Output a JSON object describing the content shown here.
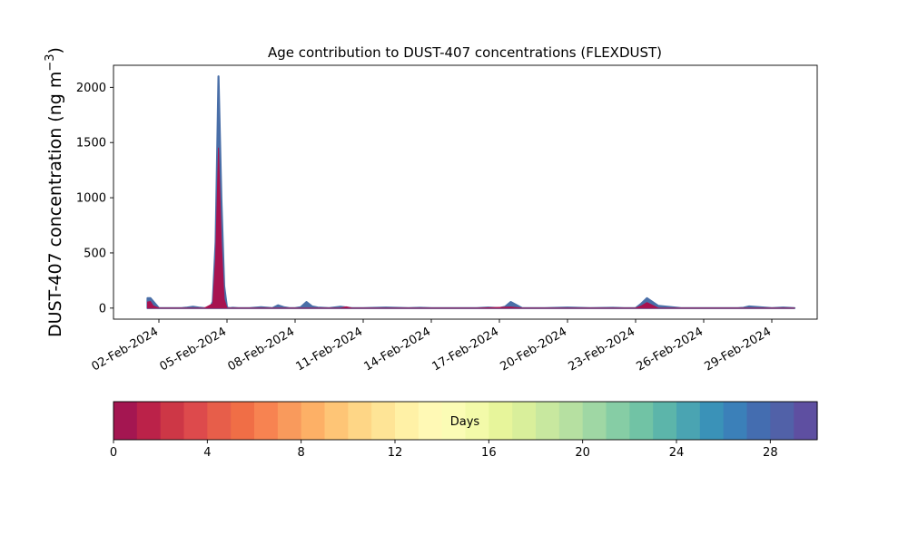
{
  "chart_data": {
    "type": "area",
    "title": "Age contribution to DUST-407 concentrations (FLEXDUST)",
    "ylabel_main": "DUST-407 concentration (ng m",
    "ylabel_exp": "−3",
    "ylabel_close": ")",
    "xlabel": "",
    "x_is_date": true,
    "xlim": [
      "2024-01-31",
      "2024-03-02"
    ],
    "ylim": [
      -100,
      2200
    ],
    "yticks": [
      0,
      500,
      1000,
      1500,
      2000
    ],
    "ytick_labels": [
      "0",
      "500",
      "1000",
      "1500",
      "2000"
    ],
    "xtick_dates": [
      "2024-02-02",
      "2024-02-05",
      "2024-02-08",
      "2024-02-11",
      "2024-02-14",
      "2024-02-17",
      "2024-02-20",
      "2024-02-23",
      "2024-02-26",
      "2024-02-29"
    ],
    "xtick_labels": [
      "02-Feb-2024",
      "05-Feb-2024",
      "08-Feb-2024",
      "11-Feb-2024",
      "14-Feb-2024",
      "17-Feb-2024",
      "20-Feb-2024",
      "23-Feb-2024",
      "26-Feb-2024",
      "29-Feb-2024"
    ],
    "series": [
      {
        "role": "total",
        "color": "#4a6fa8",
        "x": [
          "2024-02-01T12:00",
          "2024-02-01T15:00",
          "2024-02-01T18:00",
          "2024-02-02T00:00",
          "2024-02-02T12:00",
          "2024-02-03T00:00",
          "2024-02-03T06:00",
          "2024-02-03T12:00",
          "2024-02-03T18:00",
          "2024-02-04T00:00",
          "2024-02-04T06:00",
          "2024-02-04T09:00",
          "2024-02-04T12:00",
          "2024-02-04T15:00",
          "2024-02-04T18:00",
          "2024-02-04T21:00",
          "2024-02-05T00:00",
          "2024-02-05T03:00",
          "2024-02-05T06:00",
          "2024-02-05T12:00",
          "2024-02-06T00:00",
          "2024-02-06T12:00",
          "2024-02-07T00:00",
          "2024-02-07T06:00",
          "2024-02-07T12:00",
          "2024-02-07T18:00",
          "2024-02-08T00:00",
          "2024-02-08T06:00",
          "2024-02-08T12:00",
          "2024-02-08T18:00",
          "2024-02-09T00:00",
          "2024-02-09T12:00",
          "2024-02-10T00:00",
          "2024-02-10T12:00",
          "2024-02-11T00:00",
          "2024-02-12T00:00",
          "2024-02-13T00:00",
          "2024-02-13T12:00",
          "2024-02-14T00:00",
          "2024-02-15T00:00",
          "2024-02-16T00:00",
          "2024-02-16T12:00",
          "2024-02-17T00:00",
          "2024-02-17T06:00",
          "2024-02-17T12:00",
          "2024-02-18T00:00",
          "2024-02-19T00:00",
          "2024-02-20T00:00",
          "2024-02-21T00:00",
          "2024-02-22T00:00",
          "2024-02-22T12:00",
          "2024-02-22T18:00",
          "2024-02-23T00:00",
          "2024-02-23T06:00",
          "2024-02-23T12:00",
          "2024-02-24T00:00",
          "2024-02-25T00:00",
          "2024-02-26T00:00",
          "2024-02-27T00:00",
          "2024-02-27T12:00",
          "2024-02-27T18:00",
          "2024-02-28T00:00",
          "2024-02-29T00:00",
          "2024-02-29T12:00",
          "2024-03-01T00:00"
        ],
        "y": [
          90,
          90,
          60,
          0,
          0,
          0,
          5,
          12,
          5,
          0,
          0,
          60,
          600,
          2100,
          1000,
          200,
          5,
          0,
          3,
          0,
          0,
          8,
          0,
          25,
          8,
          0,
          0,
          8,
          55,
          15,
          5,
          0,
          12,
          0,
          0,
          5,
          0,
          3,
          0,
          0,
          0,
          5,
          0,
          12,
          55,
          0,
          0,
          5,
          0,
          3,
          0,
          0,
          0,
          40,
          90,
          20,
          0,
          0,
          0,
          0,
          3,
          15,
          0,
          5,
          0
        ]
      },
      {
        "role": "youngest",
        "color": "#a71350",
        "x": [
          "2024-02-01T12:00",
          "2024-02-01T15:00",
          "2024-02-01T18:00",
          "2024-02-02T00:00",
          "2024-02-04T00:00",
          "2024-02-04T09:00",
          "2024-02-04T12:00",
          "2024-02-04T15:00",
          "2024-02-04T18:00",
          "2024-02-04T21:00",
          "2024-02-05T00:00",
          "2024-02-05T06:00",
          "2024-02-08T12:00",
          "2024-02-09T00:00",
          "2024-02-10T00:00",
          "2024-02-10T06:00",
          "2024-02-10T12:00",
          "2024-02-16T00:00",
          "2024-02-17T12:00",
          "2024-02-18T00:00",
          "2024-02-23T00:00",
          "2024-02-23T06:00",
          "2024-02-23T12:00",
          "2024-02-24T00:00",
          "2024-03-01T00:00"
        ],
        "y": [
          55,
          60,
          20,
          0,
          0,
          40,
          450,
          1450,
          600,
          80,
          0,
          0,
          0,
          0,
          0,
          12,
          0,
          0,
          10,
          0,
          0,
          20,
          50,
          0,
          0
        ]
      }
    ],
    "colorbar": {
      "label": "Days",
      "min": 0,
      "max": 30,
      "ticks": [
        0,
        4,
        8,
        12,
        16,
        20,
        24,
        28
      ],
      "tick_labels": [
        "0",
        "4",
        "8",
        "12",
        "16",
        "20",
        "24",
        "28"
      ],
      "colors": [
        "#a41651",
        "#bb2249",
        "#cd3746",
        "#dd4a4c",
        "#e75e4a",
        "#f06e46",
        "#f78351",
        "#f99a5c",
        "#fdb066",
        "#fec576",
        "#fed686",
        "#fee496",
        "#fff1a6",
        "#fff9b5",
        "#fbfcb5",
        "#f3faa9",
        "#e7f59b",
        "#d9ef9b",
        "#c8e89f",
        "#b6e0a1",
        "#9fd7a4",
        "#86cda5",
        "#71c3a5",
        "#5cb5aa",
        "#4aa4b2",
        "#3a92b8",
        "#3b80b9",
        "#446db0",
        "#5161a8",
        "#5e4fa1"
      ]
    }
  }
}
